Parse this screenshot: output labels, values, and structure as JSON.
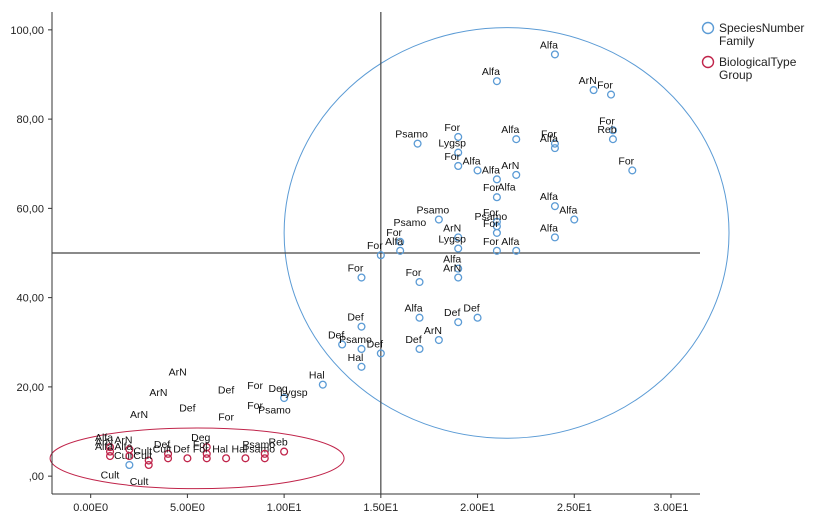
{
  "chart_data": {
    "type": "scatter",
    "title": "",
    "xlabel": "",
    "ylabel": "",
    "xlim": [
      -2,
      31.5
    ],
    "ylim": [
      -4,
      104
    ],
    "x_ticks": [
      0,
      5,
      10,
      15,
      20,
      25,
      30
    ],
    "x_tick_labels": [
      "0.00E0",
      "5.00E0",
      "1.00E1",
      "1.50E1",
      "2.00E1",
      "2.50E1",
      "3.00E1"
    ],
    "y_ticks": [
      0,
      20,
      40,
      60,
      80,
      100
    ],
    "y_tick_labels": [
      ",00",
      "20,00",
      "40,00",
      "60,00",
      "80,00",
      "100,00"
    ],
    "reference_lines": {
      "x": 15,
      "y": 50
    },
    "grid": false,
    "legend_position": "top-right",
    "colors": {
      "SpeciesNumber": "#5b9bd5",
      "BiologicalType": "#c0244a",
      "axes": "#333333",
      "reference": "#444444"
    },
    "series": [
      {
        "name": "SpeciesNumber\nFamily",
        "color": "#5b9bd5",
        "points": [
          {
            "x": 24.0,
            "y": 94.5,
            "label": "Alfa"
          },
          {
            "x": 21.0,
            "y": 88.5,
            "label": "Alfa"
          },
          {
            "x": 26.0,
            "y": 86.5,
            "label": "ArN"
          },
          {
            "x": 26.9,
            "y": 85.5,
            "label": "For"
          },
          {
            "x": 27.0,
            "y": 77.5,
            "label": "For"
          },
          {
            "x": 27.0,
            "y": 75.5,
            "label": "Reb"
          },
          {
            "x": 28.0,
            "y": 68.5,
            "label": "For"
          },
          {
            "x": 16.9,
            "y": 74.5,
            "label": "Psamo"
          },
          {
            "x": 19.0,
            "y": 76.0,
            "label": "For"
          },
          {
            "x": 22.0,
            "y": 75.5,
            "label": "Alfa"
          },
          {
            "x": 24.0,
            "y": 74.5,
            "label": "For"
          },
          {
            "x": 24.0,
            "y": 73.5,
            "label": "Alfa"
          },
          {
            "x": 19.0,
            "y": 72.5,
            "label": "Lygsp"
          },
          {
            "x": 19.0,
            "y": 69.5,
            "label": "For"
          },
          {
            "x": 20.0,
            "y": 68.5,
            "label": "Alfa"
          },
          {
            "x": 22.0,
            "y": 67.5,
            "label": "ArN"
          },
          {
            "x": 21.0,
            "y": 66.5,
            "label": "Alfa"
          },
          {
            "x": 21.0,
            "y": 62.5,
            "label": "For"
          },
          {
            "x": 24.0,
            "y": 60.5,
            "label": "Alfa"
          },
          {
            "x": 25.0,
            "y": 57.5,
            "label": "Alfa"
          },
          {
            "x": 18.0,
            "y": 57.5,
            "label": "Psamo"
          },
          {
            "x": 21.0,
            "y": 57.0,
            "label": "For"
          },
          {
            "x": 21.0,
            "y": 56.0,
            "label": "Psamo"
          },
          {
            "x": 21.0,
            "y": 54.5,
            "label": "For"
          },
          {
            "x": 19.0,
            "y": 53.5,
            "label": "ArN"
          },
          {
            "x": 19.0,
            "y": 51.0,
            "label": "Lygsp"
          },
          {
            "x": 21.0,
            "y": 50.5,
            "label": "For"
          },
          {
            "x": 22.0,
            "y": 50.5,
            "label": "Alfa"
          },
          {
            "x": 24.0,
            "y": 53.5,
            "label": "Alfa"
          },
          {
            "x": 16.0,
            "y": 52.5,
            "label": "For"
          },
          {
            "x": 16.0,
            "y": 50.5,
            "label": "Alfa"
          },
          {
            "x": 15.0,
            "y": 49.5,
            "label": "For"
          },
          {
            "x": 14.0,
            "y": 44.5,
            "label": "For"
          },
          {
            "x": 17.0,
            "y": 43.5,
            "label": "For"
          },
          {
            "x": 19.0,
            "y": 46.5,
            "label": "Alfa"
          },
          {
            "x": 19.0,
            "y": 44.5,
            "label": "ArN"
          },
          {
            "x": 17.0,
            "y": 35.5,
            "label": "Alfa"
          },
          {
            "x": 20.0,
            "y": 35.5,
            "label": "Def"
          },
          {
            "x": 19.0,
            "y": 34.5,
            "label": "Def"
          },
          {
            "x": 18.0,
            "y": 30.5,
            "label": "ArN"
          },
          {
            "x": 14.0,
            "y": 33.5,
            "label": "Def"
          },
          {
            "x": 13.0,
            "y": 29.5,
            "label": "Def"
          },
          {
            "x": 14.0,
            "y": 28.5,
            "label": "Psamo"
          },
          {
            "x": 15.0,
            "y": 27.5,
            "label": "Def"
          },
          {
            "x": 14.0,
            "y": 24.5,
            "label": "Hal"
          },
          {
            "x": 17.0,
            "y": 28.5,
            "label": "Def"
          },
          {
            "x": 12.0,
            "y": 20.5,
            "label": "Hal"
          },
          {
            "x": 10.0,
            "y": 17.5,
            "label": "Deg"
          },
          {
            "x": 2.0,
            "y": 2.5,
            "label": "Cult"
          }
        ]
      },
      {
        "name": "BiologicalType\nGroup",
        "color": "#c0244a",
        "points": [
          {
            "x": 1.0,
            "y": 6.5,
            "label": "Alfa"
          },
          {
            "x": 1.0,
            "y": 5.5,
            "label": "ArN"
          },
          {
            "x": 1.0,
            "y": 4.5,
            "label": "Alfa"
          },
          {
            "x": 2.0,
            "y": 6.0,
            "label": "ArN"
          },
          {
            "x": 2.0,
            "y": 4.5,
            "label": "Alfa"
          },
          {
            "x": 3.0,
            "y": 3.5,
            "label": "Cult"
          },
          {
            "x": 3.0,
            "y": 2.5,
            "label": "Cult"
          },
          {
            "x": 4.0,
            "y": 5.0,
            "label": "Def"
          },
          {
            "x": 4.0,
            "y": 4.0,
            "label": "Cult"
          },
          {
            "x": 5.0,
            "y": 4.0,
            "label": "Def"
          },
          {
            "x": 6.0,
            "y": 6.5,
            "label": "Deg"
          },
          {
            "x": 6.0,
            "y": 5.0,
            "label": "For"
          },
          {
            "x": 6.0,
            "y": 4.0,
            "label": "For"
          },
          {
            "x": 7.0,
            "y": 4.0,
            "label": "Hal"
          },
          {
            "x": 8.0,
            "y": 4.0,
            "label": "Hal"
          },
          {
            "x": 9.0,
            "y": 4.0,
            "label": "Psamo"
          },
          {
            "x": 9.0,
            "y": 5.0,
            "label": "Psamo"
          },
          {
            "x": 10.0,
            "y": 5.5,
            "label": "Reb"
          }
        ]
      }
    ],
    "free_labels": [
      {
        "text": "Alfa",
        "x": 21.5,
        "y": 64.0
      },
      {
        "text": "Psamo",
        "x": 16.5,
        "y": 56.0
      },
      {
        "text": "ArN",
        "x": 4.5,
        "y": 22.5
      },
      {
        "text": "ArN",
        "x": 3.5,
        "y": 18.0
      },
      {
        "text": "Def",
        "x": 7.0,
        "y": 18.5
      },
      {
        "text": "For",
        "x": 8.5,
        "y": 19.5
      },
      {
        "text": "Lygsp",
        "x": 10.5,
        "y": 18.0
      },
      {
        "text": "Def",
        "x": 5.0,
        "y": 14.5
      },
      {
        "text": "For",
        "x": 8.5,
        "y": 15.0
      },
      {
        "text": "ArN",
        "x": 2.5,
        "y": 13.0
      },
      {
        "text": "For",
        "x": 7.0,
        "y": 12.5
      },
      {
        "text": "Psamo",
        "x": 9.5,
        "y": 14.0
      },
      {
        "text": "Cult",
        "x": 1.0,
        "y": -0.5
      },
      {
        "text": "Cult",
        "x": 2.5,
        "y": -2.0
      }
    ],
    "ellipses": [
      {
        "series": "SpeciesNumber\nFamily",
        "cx": 21.5,
        "cy": 54.5,
        "rx": 11.5,
        "ry": 46.0
      },
      {
        "series": "BiologicalType\nGroup",
        "cx": 5.5,
        "cy": 4.0,
        "rx": 7.6,
        "ry": 6.8
      }
    ]
  }
}
